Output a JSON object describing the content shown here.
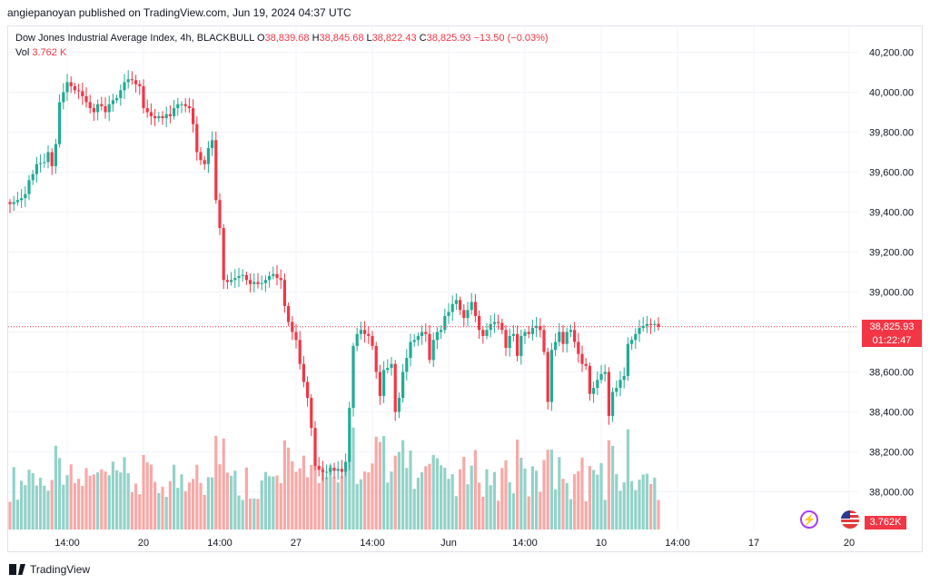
{
  "header": {
    "published_line": "angiepanoyan published on TradingView.com, Jun 19, 2024 04:37 UTC"
  },
  "legend": {
    "instrument": "Dow Jones Industrial Average Index, 4h, BLACKBULL",
    "open_label": "O",
    "open_value": "38,839.68",
    "high_label": "H",
    "high_value": "38,845.68",
    "low_label": "L",
    "low_value": "38,822.43",
    "close_label": "C",
    "close_value": "38,825.93",
    "change": "−13.50 (−0.03%)",
    "vol_label": "Vol",
    "vol_value": "3.762 K"
  },
  "badges": {
    "last_price": "38,825.93",
    "countdown": "01:22:47",
    "volume": "3.762K"
  },
  "footer": {
    "brand": "TradingView"
  },
  "colors": {
    "up": "#22ab94",
    "down": "#f23645",
    "up_vol": "#93d2c9",
    "down_vol": "#f7a9a7",
    "grid": "#f0f3fa"
  },
  "chart_data": {
    "type": "candlestick",
    "price_axis": {
      "min": 37850,
      "max": 40300,
      "ticks": [
        38000,
        38200,
        38400,
        38600,
        38800,
        39000,
        39200,
        39400,
        39600,
        39800,
        40000,
        40200
      ],
      "tick_labels": [
        "38,000.00",
        "38,200.00",
        "38,400.00",
        "38,600.00",
        "38,800.00",
        "39,000.00",
        "39,200.00",
        "39,400.00",
        "39,600.00",
        "39,800.00",
        "40,000.00",
        "40,200.00"
      ]
    },
    "time_axis": {
      "ticks": [
        {
          "label": "14:00",
          "bar": 15
        },
        {
          "label": "20",
          "bar": 35
        },
        {
          "label": "14:00",
          "bar": 55
        },
        {
          "label": "27",
          "bar": 75
        },
        {
          "label": "14:00",
          "bar": 95
        },
        {
          "label": "Jun",
          "bar": 115
        },
        {
          "label": "14:00",
          "bar": 135
        },
        {
          "label": "10",
          "bar": 155
        },
        {
          "label": "14:00",
          "bar": 175
        },
        {
          "label": "17",
          "bar": 195
        },
        {
          "label": "20",
          "bar": 220
        }
      ]
    },
    "last_price": 38825.93,
    "volume_max": 5200,
    "closes": [
      39440,
      39450,
      39460,
      39470,
      39490,
      39560,
      39590,
      39640,
      39645,
      39650,
      39700,
      39630,
      39740,
      39950,
      40000,
      40050,
      40030,
      40010,
      40005,
      39980,
      39950,
      39920,
      39900,
      39940,
      39930,
      39900,
      39940,
      39960,
      39970,
      40010,
      40050,
      40065,
      40060,
      40040,
      40030,
      39920,
      39900,
      39880,
      39870,
      39880,
      39870,
      39890,
      39880,
      39920,
      39940,
      39940,
      39930,
      39920,
      39840,
      39700,
      39660,
      39640,
      39720,
      39760,
      39460,
      39320,
      39060,
      39050,
      39060,
      39070,
      39080,
      39085,
      39060,
      39040,
      39050,
      39040,
      39045,
      39060,
      39080,
      39090,
      39070,
      39060,
      38930,
      38850,
      38800,
      38760,
      38640,
      38550,
      38470,
      38320,
      38130,
      38110,
      38100,
      38100,
      38120,
      38105,
      38115,
      38100,
      38150,
      38420,
      38730,
      38790,
      38810,
      38790,
      38780,
      38730,
      38600,
      38480,
      38610,
      38620,
      38640,
      38400,
      38470,
      38600,
      38670,
      38750,
      38760,
      38780,
      38800,
      38790,
      38660,
      38760,
      38800,
      38810,
      38880,
      38900,
      38940,
      38960,
      38910,
      38870,
      38910,
      38950,
      38880,
      38810,
      38780,
      38810,
      38840,
      38850,
      38845,
      38810,
      38720,
      38780,
      38790,
      38680,
      38780,
      38800,
      38790,
      38820,
      38830,
      38810,
      38700,
      38450,
      38710,
      38750,
      38800,
      38740,
      38800,
      38810,
      38750,
      38690,
      38640,
      38630,
      38490,
      38520,
      38560,
      38590,
      38600,
      38380,
      38500,
      38520,
      38560,
      38580,
      38740,
      38760,
      38790,
      38820,
      38830,
      38840,
      38835,
      38840,
      38826
    ]
  }
}
